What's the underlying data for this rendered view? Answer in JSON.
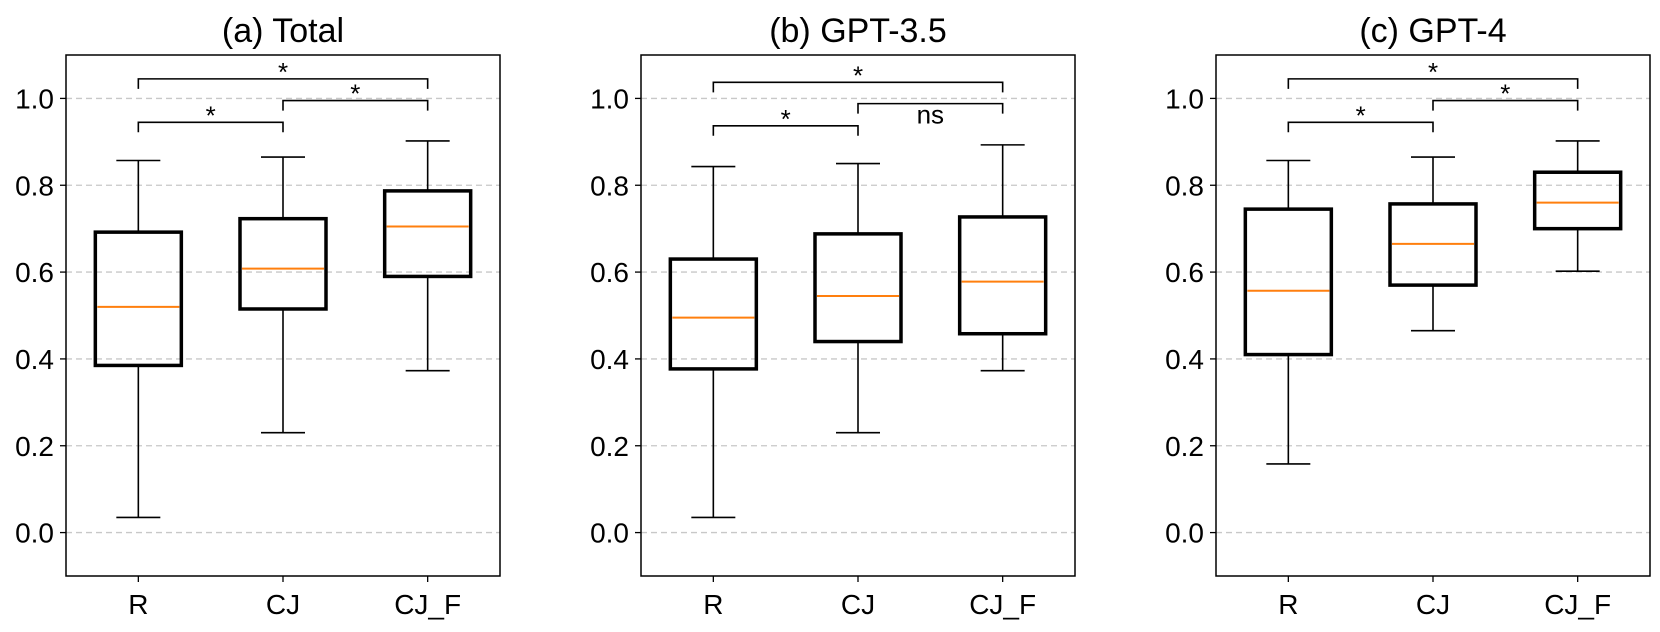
{
  "chart_data": [
    {
      "type": "box",
      "title": "(a) Total",
      "xlabel": "",
      "ylabel": "",
      "categories": [
        "R",
        "CJ",
        "CJ_F"
      ],
      "ylim": [
        -0.1,
        1.1
      ],
      "yticks": [
        "0.0",
        "0.2",
        "0.4",
        "0.6",
        "0.8",
        "1.0"
      ],
      "grid": "horizontal dashed",
      "boxes": [
        {
          "category": "R",
          "whisker_low": 0.035,
          "q1": 0.385,
          "median": 0.52,
          "q3": 0.692,
          "whisker_high": 0.857
        },
        {
          "category": "CJ",
          "whisker_low": 0.23,
          "q1": 0.515,
          "median": 0.608,
          "q3": 0.723,
          "whisker_high": 0.865
        },
        {
          "category": "CJ_F",
          "whisker_low": 0.373,
          "q1": 0.59,
          "median": 0.705,
          "q3": 0.787,
          "whisker_high": 0.902
        }
      ],
      "significance": [
        {
          "from": "R",
          "to": "CJ",
          "label": "*",
          "y": 0.945
        },
        {
          "from": "CJ",
          "to": "CJ_F",
          "label": "*",
          "y": 0.995
        },
        {
          "from": "R",
          "to": "CJ_F",
          "label": "*",
          "y": 1.045
        }
      ]
    },
    {
      "type": "box",
      "title": "(b) GPT-3.5",
      "xlabel": "",
      "ylabel": "",
      "categories": [
        "R",
        "CJ",
        "CJ_F"
      ],
      "ylim": [
        -0.1,
        1.1
      ],
      "yticks": [
        "0.0",
        "0.2",
        "0.4",
        "0.6",
        "0.8",
        "1.0"
      ],
      "grid": "horizontal dashed",
      "boxes": [
        {
          "category": "R",
          "whisker_low": 0.035,
          "q1": 0.377,
          "median": 0.495,
          "q3": 0.63,
          "whisker_high": 0.843
        },
        {
          "category": "CJ",
          "whisker_low": 0.23,
          "q1": 0.44,
          "median": 0.545,
          "q3": 0.688,
          "whisker_high": 0.85
        },
        {
          "category": "CJ_F",
          "whisker_low": 0.373,
          "q1": 0.458,
          "median": 0.578,
          "q3": 0.727,
          "whisker_high": 0.893
        }
      ],
      "significance": [
        {
          "from": "R",
          "to": "CJ",
          "label": "*",
          "y": 0.937
        },
        {
          "from": "CJ",
          "to": "CJ_F",
          "label": "ns",
          "y": 0.988
        },
        {
          "from": "R",
          "to": "CJ_F",
          "label": "*",
          "y": 1.037
        }
      ]
    },
    {
      "type": "box",
      "title": "(c) GPT-4",
      "xlabel": "",
      "ylabel": "",
      "categories": [
        "R",
        "CJ",
        "CJ_F"
      ],
      "ylim": [
        -0.1,
        1.1
      ],
      "yticks": [
        "0.0",
        "0.2",
        "0.4",
        "0.6",
        "0.8",
        "1.0"
      ],
      "grid": "horizontal dashed",
      "boxes": [
        {
          "category": "R",
          "whisker_low": 0.158,
          "q1": 0.41,
          "median": 0.557,
          "q3": 0.745,
          "whisker_high": 0.857
        },
        {
          "category": "CJ",
          "whisker_low": 0.465,
          "q1": 0.57,
          "median": 0.665,
          "q3": 0.757,
          "whisker_high": 0.865
        },
        {
          "category": "CJ_F",
          "whisker_low": 0.602,
          "q1": 0.7,
          "median": 0.76,
          "q3": 0.83,
          "whisker_high": 0.902
        }
      ],
      "significance": [
        {
          "from": "R",
          "to": "CJ",
          "label": "*",
          "y": 0.945
        },
        {
          "from": "CJ",
          "to": "CJ_F",
          "label": "*",
          "y": 0.995
        },
        {
          "from": "R",
          "to": "CJ_F",
          "label": "*",
          "y": 1.045
        }
      ]
    }
  ],
  "colors": {
    "box_edge": "#000000",
    "median": "#ff7f0e",
    "grid": "#c8c8c8"
  }
}
